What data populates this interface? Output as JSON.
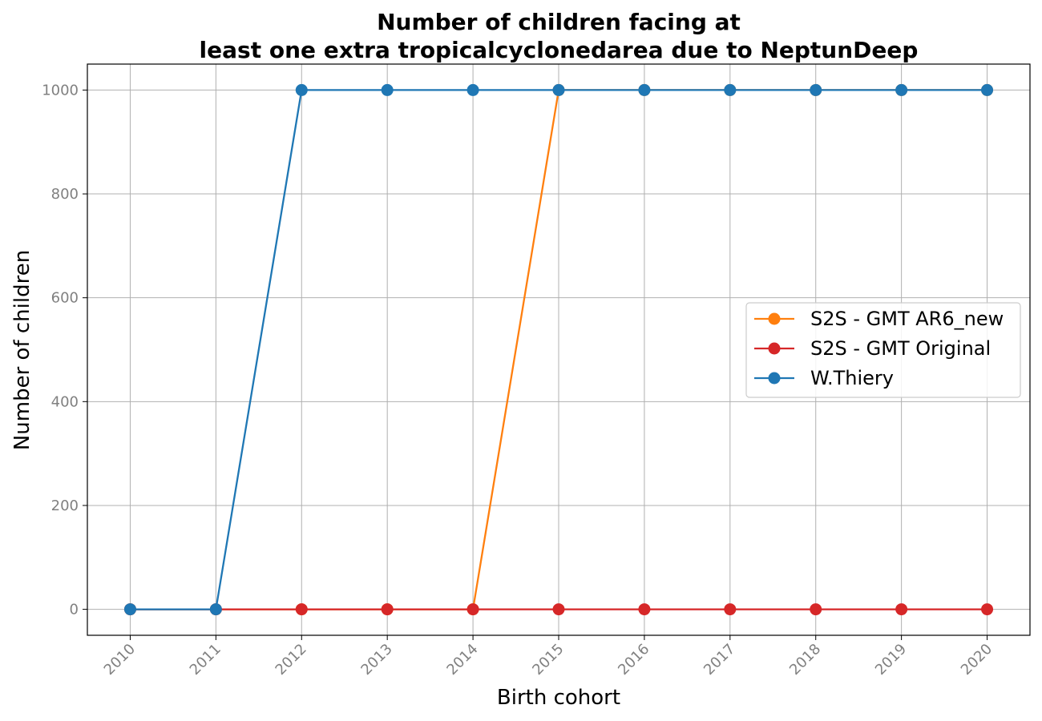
{
  "chart_data": {
    "type": "line",
    "title_lines": [
      "Number of children facing at",
      "least one extra tropicalcyclonedarea due to NeptunDeep"
    ],
    "xlabel": "Birth cohort",
    "ylabel": "Number of children",
    "x": [
      2010,
      2011,
      2012,
      2013,
      2014,
      2015,
      2016,
      2017,
      2018,
      2019,
      2020
    ],
    "x_tick_labels": [
      "2010",
      "2011",
      "2012",
      "2013",
      "2014",
      "2015",
      "2016",
      "2017",
      "2018",
      "2019",
      "2020"
    ],
    "y_ticks": [
      0,
      200,
      400,
      600,
      800,
      1000
    ],
    "y_tick_labels": [
      "0",
      "200",
      "400",
      "600",
      "800",
      "1000"
    ],
    "xlim": [
      2009.5,
      2020.5
    ],
    "ylim": [
      -50,
      1050
    ],
    "grid": true,
    "legend_position": "center-right",
    "series": [
      {
        "name": "S2S - GMT AR6_new",
        "color": "#ff7f0e",
        "values": [
          0,
          0,
          0,
          0,
          0,
          1000,
          1000,
          1000,
          1000,
          1000,
          1000
        ]
      },
      {
        "name": "S2S - GMT Original",
        "color": "#d62728",
        "values": [
          0,
          0,
          0,
          0,
          0,
          0,
          0,
          0,
          0,
          0,
          0
        ]
      },
      {
        "name": "W.Thiery",
        "color": "#1f77b4",
        "values": [
          0,
          0,
          1000,
          1000,
          1000,
          1000,
          1000,
          1000,
          1000,
          1000,
          1000
        ]
      }
    ]
  }
}
